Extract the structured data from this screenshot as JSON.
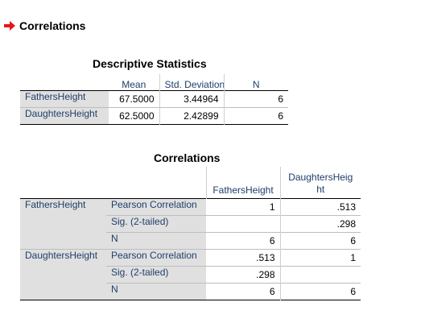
{
  "heading": {
    "text": "Correlations",
    "icon": "red-arrow-icon",
    "icon_color": "#e8141b"
  },
  "descriptive": {
    "title": "Descriptive Statistics",
    "columns": [
      "Mean",
      "Std. Deviation",
      "N"
    ],
    "rows": [
      {
        "label": "FathersHeight",
        "mean": "67.5000",
        "sd": "3.44964",
        "n": "6"
      },
      {
        "label": "DaughtersHeight",
        "mean": "62.5000",
        "sd": "2.42899",
        "n": "6"
      }
    ]
  },
  "correlations": {
    "title": "Correlations",
    "columns": [
      "FathersHeight",
      "DaughtersHeig ht"
    ],
    "stat_labels": [
      "Pearson Correlation",
      "Sig. (2-tailed)",
      "N"
    ],
    "blocks": [
      {
        "label": "FathersHeight",
        "pearson": [
          "1",
          ".513"
        ],
        "sig": [
          "",
          ".298"
        ],
        "n": [
          "6",
          "6"
        ]
      },
      {
        "label": "DaughtersHeight",
        "pearson": [
          ".513",
          "1"
        ],
        "sig": [
          ".298",
          ""
        ],
        "n": [
          "6",
          "6"
        ]
      }
    ]
  }
}
